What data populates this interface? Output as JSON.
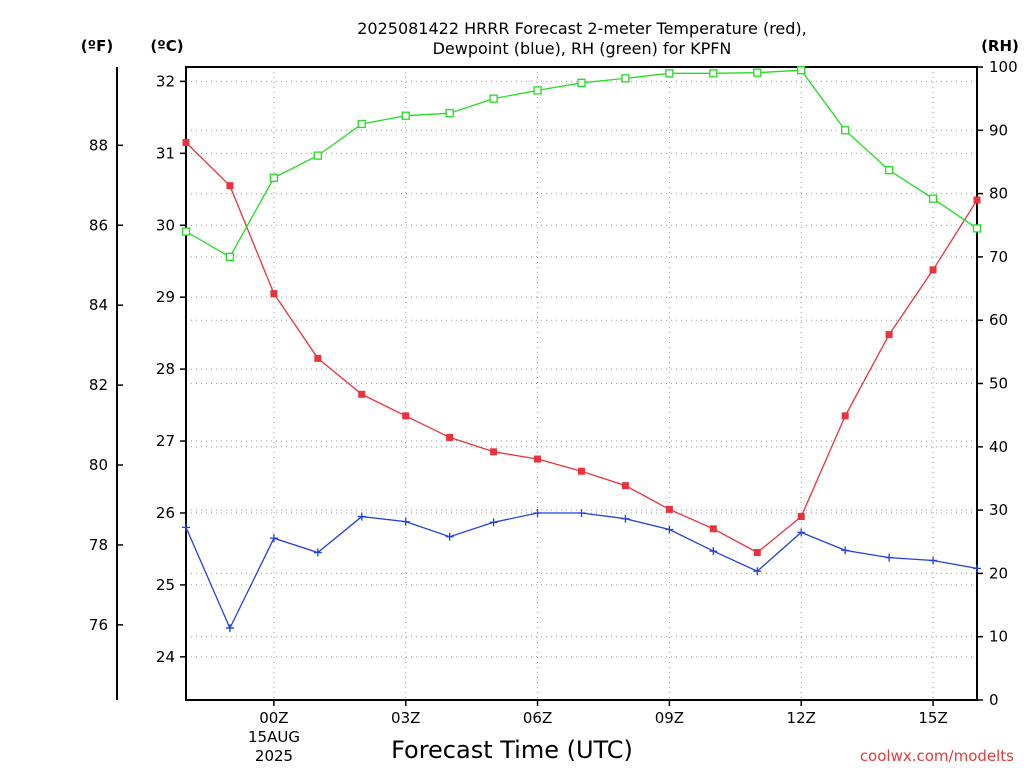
{
  "chart_data": {
    "type": "line",
    "title_lines": [
      "2025081422 HRRR Forecast 2-meter Temperature (red),",
      "Dewpoint (blue), RH (green) for KPFN"
    ],
    "x_label": "Forecast Time (UTC)",
    "x_date_label": [
      "15AUG",
      "2025"
    ],
    "x_ticks": [
      {
        "hour": 0,
        "label": "00Z"
      },
      {
        "hour": 3,
        "label": "03Z"
      },
      {
        "hour": 6,
        "label": "06Z"
      },
      {
        "hour": 9,
        "label": "09Z"
      },
      {
        "hour": 12,
        "label": "12Z"
      },
      {
        "hour": 15,
        "label": "15Z"
      }
    ],
    "x_hours": [
      -2,
      -1,
      0,
      1,
      2,
      3,
      4,
      5,
      6,
      7,
      8,
      9,
      10,
      11,
      12,
      13,
      14,
      15,
      16
    ],
    "x_range": [
      -2,
      16
    ],
    "axes": {
      "fahrenheit": {
        "unit_label": "(ºF)",
        "ticks": [
          76,
          78,
          80,
          82,
          84,
          86,
          88
        ]
      },
      "celsius": {
        "unit_label": "(ºC)",
        "ticks": [
          24,
          25,
          26,
          27,
          28,
          29,
          30,
          31,
          32
        ],
        "range": [
          23.4,
          32.2
        ]
      },
      "rh": {
        "unit_label": "(RH)",
        "ticks": [
          0,
          10,
          20,
          30,
          40,
          50,
          60,
          70,
          80,
          90,
          100
        ],
        "range": [
          0,
          100
        ]
      }
    },
    "series": [
      {
        "key": "temperature",
        "axis": "celsius",
        "color": "#e8323c",
        "marker": "filled-square",
        "values": [
          31.15,
          30.55,
          29.05,
          28.15,
          27.65,
          27.35,
          27.05,
          26.85,
          26.75,
          26.58,
          26.38,
          26.05,
          25.78,
          25.45,
          25.95,
          27.35,
          28.48,
          29.38,
          30.35
        ]
      },
      {
        "key": "dewpoint",
        "axis": "celsius",
        "color": "#2040e0",
        "marker": "plus",
        "values": [
          25.8,
          24.4,
          25.65,
          25.45,
          25.95,
          25.88,
          25.67,
          25.87,
          26.0,
          26.0,
          25.92,
          25.77,
          25.47,
          25.19,
          25.73,
          25.48,
          25.38,
          25.34,
          25.23
        ]
      },
      {
        "key": "rh",
        "axis": "rh",
        "color": "#22dd22",
        "marker": "open-square",
        "values": [
          74,
          70,
          82.5,
          86,
          91,
          92.3,
          92.7,
          95,
          96.3,
          97.5,
          98.2,
          99,
          99,
          99.1,
          99.5,
          90,
          83.7,
          79.2,
          74.5
        ]
      }
    ],
    "credit": "coolwx.com/modelts",
    "grid": true
  }
}
